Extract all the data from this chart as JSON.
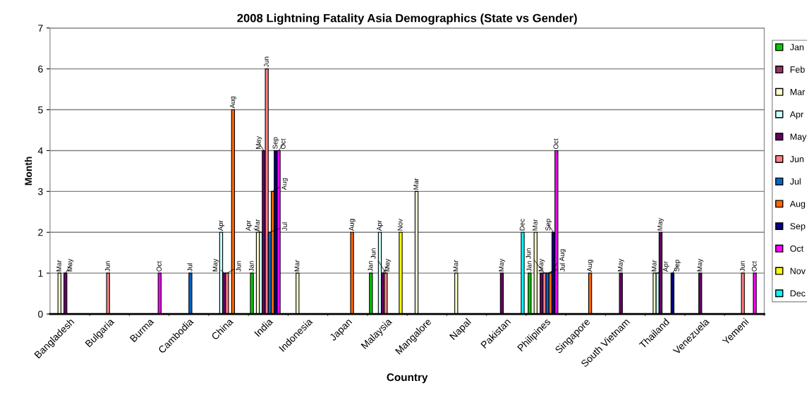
{
  "chart_data": {
    "type": "bar",
    "title": "2008 Lightning Fatality Asia Demographics (State vs Gender)",
    "xlabel": "Country",
    "ylabel": "Month",
    "categories": [
      "Bangladesh",
      "Bulgaria",
      "Burma",
      "Cambodia",
      "China",
      "India",
      "Indonesia",
      "Japan",
      "Malaysia",
      "Mangalore",
      "Napal",
      "Pakistan",
      "Philipines",
      "Singapore",
      "South Vietnam",
      "Thailand",
      "Venezuela",
      "Yemeni"
    ],
    "ylim": [
      0,
      7
    ],
    "yticks": [
      0,
      1,
      2,
      3,
      4,
      5,
      6,
      7
    ],
    "grid": "y",
    "legend": "right",
    "series": [
      {
        "name": "Jan",
        "color": "#00cc00",
        "values": [
          0,
          0,
          0,
          0,
          0,
          1,
          0,
          0,
          1,
          0,
          0,
          0,
          1,
          0,
          0,
          0,
          0,
          0
        ],
        "value_labels": [
          null,
          null,
          null,
          null,
          null,
          "Jan",
          null,
          null,
          "Jan",
          null,
          null,
          null,
          "Jan",
          null,
          null,
          null,
          null,
          null
        ]
      },
      {
        "name": "Feb",
        "color": "#993366",
        "values": [
          0,
          0,
          0,
          0,
          0,
          0,
          0,
          0,
          0,
          0,
          0,
          0,
          0,
          0,
          0,
          0,
          0,
          0
        ]
      },
      {
        "name": "Mar",
        "color": "#ffffcc",
        "values": [
          1,
          0,
          0,
          0,
          0,
          2,
          1,
          0,
          0,
          3,
          1,
          0,
          2,
          0,
          0,
          1,
          0,
          0
        ],
        "value_labels": [
          "Mar",
          null,
          null,
          null,
          null,
          "Mar",
          "Mar",
          null,
          null,
          "Mar",
          "Mar",
          null,
          "Mar",
          null,
          null,
          "Mar",
          null,
          null
        ]
      },
      {
        "name": "Apr",
        "color": "#ccffff",
        "values": [
          0,
          0,
          0,
          0,
          2,
          2,
          0,
          0,
          2,
          0,
          0,
          0,
          0,
          0,
          0,
          1,
          0,
          0
        ],
        "value_labels": [
          null,
          null,
          null,
          null,
          "Apr",
          "Apr",
          null,
          null,
          "Apr",
          null,
          null,
          null,
          null,
          null,
          null,
          "Apr",
          null,
          null
        ]
      },
      {
        "name": "May",
        "color": "#660066",
        "values": [
          1,
          0,
          0,
          0,
          1,
          4,
          0,
          0,
          1,
          0,
          0,
          1,
          1,
          0,
          1,
          2,
          1,
          0
        ],
        "value_labels": [
          "May",
          null,
          null,
          null,
          "May",
          "May",
          null,
          null,
          "May",
          null,
          null,
          "May",
          "May",
          null,
          "May",
          "May",
          "May",
          null
        ]
      },
      {
        "name": "Jun",
        "color": "#ff8080",
        "values": [
          0,
          1,
          0,
          0,
          1,
          6,
          0,
          0,
          1,
          0,
          0,
          0,
          1,
          0,
          0,
          0,
          0,
          1
        ],
        "value_labels": [
          null,
          "Jun",
          null,
          null,
          "Jun",
          "Jun",
          null,
          null,
          "Jun",
          null,
          null,
          null,
          "Jun",
          null,
          null,
          null,
          null,
          "Jun"
        ]
      },
      {
        "name": "Jul",
        "color": "#0066cc",
        "values": [
          0,
          0,
          0,
          1,
          0,
          2,
          0,
          0,
          0,
          0,
          0,
          0,
          1,
          0,
          0,
          0,
          0,
          0
        ],
        "value_labels": [
          null,
          null,
          null,
          "Jul",
          null,
          "Jul",
          null,
          null,
          null,
          null,
          null,
          null,
          "Jul",
          null,
          null,
          null,
          null,
          null
        ]
      },
      {
        "name": "Aug",
        "color": "#ff6600",
        "values": [
          0,
          0,
          0,
          0,
          5,
          3,
          0,
          2,
          0,
          0,
          0,
          0,
          1,
          1,
          0,
          0,
          0,
          0
        ],
        "value_labels": [
          null,
          null,
          null,
          null,
          "Aug",
          "Aug",
          null,
          "Aug",
          null,
          null,
          null,
          null,
          "Aug",
          "Aug",
          null,
          null,
          null,
          null
        ]
      },
      {
        "name": "Sep",
        "color": "#000080",
        "values": [
          0,
          0,
          0,
          0,
          0,
          4,
          0,
          0,
          0,
          0,
          0,
          0,
          2,
          0,
          0,
          1,
          0,
          0
        ],
        "value_labels": [
          null,
          null,
          null,
          null,
          null,
          "Sep",
          null,
          null,
          null,
          null,
          null,
          null,
          "Sep",
          null,
          null,
          "Sep",
          null,
          null
        ]
      },
      {
        "name": "Oct",
        "color": "#ff00ff",
        "values": [
          0,
          0,
          1,
          0,
          0,
          4,
          0,
          0,
          0,
          0,
          0,
          0,
          4,
          0,
          0,
          0,
          0,
          1
        ],
        "value_labels": [
          null,
          null,
          "Oct",
          null,
          null,
          "Oct",
          null,
          null,
          null,
          null,
          null,
          null,
          "Oct",
          null,
          null,
          null,
          null,
          "Oct"
        ]
      },
      {
        "name": "Nov",
        "color": "#ffff00",
        "values": [
          0,
          0,
          0,
          0,
          0,
          0,
          0,
          0,
          2,
          0,
          0,
          0,
          0,
          0,
          0,
          0,
          0,
          0
        ],
        "value_labels": [
          null,
          null,
          null,
          null,
          null,
          null,
          null,
          null,
          "Nov",
          null,
          null,
          null,
          null,
          null,
          null,
          null,
          null,
          null
        ]
      },
      {
        "name": "Dec",
        "color": "#00ffff",
        "values": [
          0,
          0,
          0,
          0,
          0,
          0,
          0,
          0,
          0,
          0,
          0,
          2,
          0,
          0,
          0,
          0,
          0,
          0
        ],
        "value_labels": [
          null,
          null,
          null,
          null,
          null,
          null,
          null,
          null,
          null,
          null,
          null,
          "Dec",
          null,
          null,
          null,
          null,
          null,
          null
        ]
      }
    ]
  }
}
